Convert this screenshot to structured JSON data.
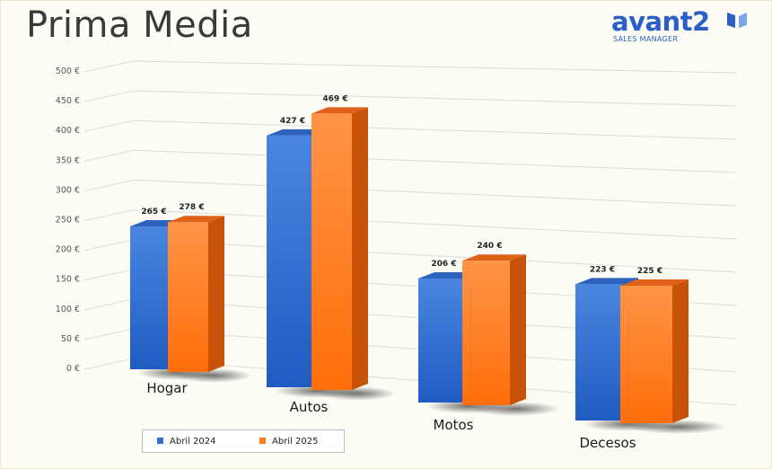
{
  "header": {
    "title": "Prima Media"
  },
  "logo": {
    "word": "avant2",
    "sub": "SALES MANAGER"
  },
  "colors": {
    "series1": "#2f6fd0",
    "series2": "#ff7a1c",
    "background": "#fdfcf5",
    "grid": "#dedede"
  },
  "chart_data": {
    "type": "bar",
    "title": "Prima Media",
    "categories": [
      "Hogar",
      "Autos",
      "Motos",
      "Decesos"
    ],
    "series": [
      {
        "name": "Abril 2024",
        "values": [
          265,
          427,
          206,
          223
        ],
        "labels": [
          "265 €",
          "427 €",
          "206 €",
          "223 €"
        ]
      },
      {
        "name": "Abril 2025",
        "values": [
          278,
          469,
          240,
          225
        ],
        "labels": [
          "278 €",
          "469 €",
          "240 €",
          "225 €"
        ]
      }
    ],
    "ylim": [
      0,
      500
    ],
    "yticks": [
      "0 €",
      "50 €",
      "100 €",
      "150 €",
      "200 €",
      "250 €",
      "300 €",
      "350 €",
      "400 €",
      "450 €",
      "500 €"
    ],
    "grid": true,
    "legend_position": "bottom-left"
  }
}
